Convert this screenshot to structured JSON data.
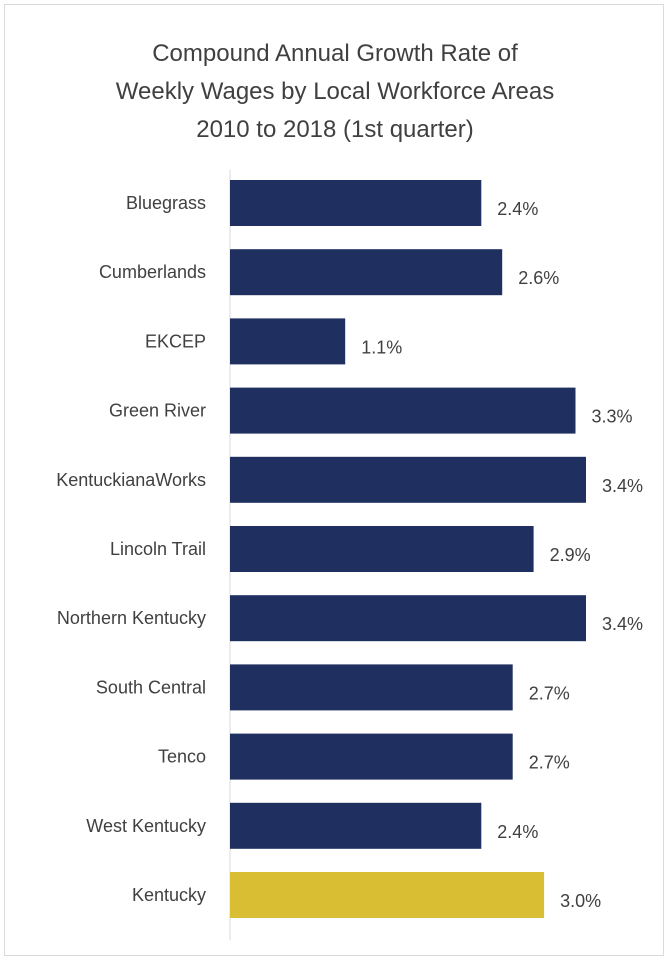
{
  "chart_data": {
    "type": "bar",
    "orientation": "horizontal",
    "title": "Compound Annual Growth Rate of Weekly Wages by Local Workforce Areas 2010 to 2018 (1st quarter)",
    "title_lines": [
      "Compound Annual Growth Rate of",
      "Weekly Wages by Local Workforce Areas",
      "2010 to 2018 (1st quarter)"
    ],
    "categories": [
      "Bluegrass",
      "Cumberlands",
      "EKCEP",
      "Green River",
      "KentuckianaWorks",
      "Lincoln Trail",
      "Northern Kentucky",
      "South Central",
      "Tenco",
      "West Kentucky",
      "Kentucky"
    ],
    "values": [
      2.4,
      2.6,
      1.1,
      3.3,
      3.4,
      2.9,
      3.4,
      2.7,
      2.7,
      2.4,
      3.0
    ],
    "value_labels": [
      "2.4%",
      "2.6%",
      "1.1%",
      "3.3%",
      "3.4%",
      "2.9%",
      "3.4%",
      "2.7%",
      "2.7%",
      "2.4%",
      "3.0%"
    ],
    "xlim": [
      0,
      3.4
    ],
    "grid": false,
    "legend": "none",
    "colors": {
      "default": "#1f3060",
      "highlight": "#d9bd33",
      "axis": "#d9d9d9",
      "text": "#404040"
    },
    "highlight_category": "Kentucky"
  }
}
